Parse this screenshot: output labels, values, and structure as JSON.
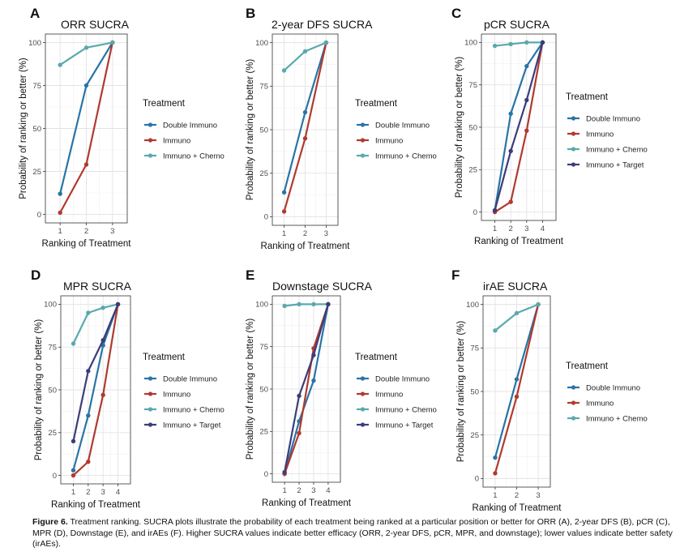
{
  "chart_data": [
    {
      "letter": "A",
      "type": "line",
      "title": "ORR SUCRA",
      "xlabel": "Ranking of Treatment",
      "ylabel": "Probability of ranking or better (%)",
      "categories": [
        "1",
        "2",
        "3"
      ],
      "ylim": [
        0,
        100
      ],
      "yticks": [
        "0",
        "25",
        "50",
        "75",
        "100"
      ],
      "legend_title": "Treatment",
      "legend_position": "right",
      "series": [
        {
          "name": "Double Immuno",
          "color": "#2874a6",
          "values": [
            12,
            75,
            100
          ]
        },
        {
          "name": "Immuno",
          "color": "#b03a2e",
          "values": [
            1,
            29,
            100
          ]
        },
        {
          "name": "Immuno + Chemo",
          "color": "#5aa9ac",
          "values": [
            87,
            97,
            100
          ]
        }
      ]
    },
    {
      "letter": "B",
      "type": "line",
      "title": "2-year DFS SUCRA",
      "xlabel": "Ranking of Treatment",
      "ylabel": "Probability of ranking or better (%)",
      "categories": [
        "1",
        "2",
        "3"
      ],
      "ylim": [
        0,
        100
      ],
      "yticks": [
        "0",
        "25",
        "50",
        "75",
        "100"
      ],
      "legend_title": "Treatment",
      "legend_position": "right",
      "series": [
        {
          "name": "Double Immuno",
          "color": "#2874a6",
          "values": [
            14,
            60,
            100
          ]
        },
        {
          "name": "Immuno",
          "color": "#b03a2e",
          "values": [
            3,
            45,
            100
          ]
        },
        {
          "name": "Immuno + Chemo",
          "color": "#5aa9ac",
          "values": [
            84,
            95,
            100
          ]
        }
      ]
    },
    {
      "letter": "C",
      "type": "line",
      "title": "pCR SUCRA",
      "xlabel": "Ranking of Treatment",
      "ylabel": "Probability of ranking or better (%)",
      "categories": [
        "1",
        "2",
        "3",
        "4"
      ],
      "ylim": [
        0,
        100
      ],
      "yticks": [
        "0",
        "25",
        "50",
        "75",
        "100"
      ],
      "legend_title": "Treatment",
      "legend_position": "right",
      "series": [
        {
          "name": "Double Immuno",
          "color": "#2874a6",
          "values": [
            1,
            58,
            86,
            100
          ]
        },
        {
          "name": "Immuno",
          "color": "#b03a2e",
          "values": [
            0,
            6,
            48,
            100
          ]
        },
        {
          "name": "Immuno + Chemo",
          "color": "#5aa9ac",
          "values": [
            98,
            99,
            100,
            100
          ]
        },
        {
          "name": "Immuno + Target",
          "color": "#3b3d7a",
          "values": [
            1,
            36,
            66,
            100
          ]
        }
      ]
    },
    {
      "letter": "D",
      "type": "line",
      "title": "MPR SUCRA",
      "xlabel": "Ranking of Treatment",
      "ylabel": "Probability of ranking or better (%)",
      "categories": [
        "1",
        "2",
        "3",
        "4"
      ],
      "ylim": [
        0,
        100
      ],
      "yticks": [
        "0",
        "25",
        "50",
        "75",
        "100"
      ],
      "legend_title": "Treatment",
      "legend_position": "right",
      "series": [
        {
          "name": "Double Immuno",
          "color": "#2874a6",
          "values": [
            3,
            35,
            76,
            100
          ]
        },
        {
          "name": "Immuno",
          "color": "#b03a2e",
          "values": [
            0,
            8,
            47,
            100
          ]
        },
        {
          "name": "Immuno + Chemo",
          "color": "#5aa9ac",
          "values": [
            77,
            95,
            98,
            100
          ]
        },
        {
          "name": "Immuno + Target",
          "color": "#3b3d7a",
          "values": [
            20,
            61,
            79,
            100
          ]
        }
      ]
    },
    {
      "letter": "E",
      "type": "line",
      "title": "Downstage SUCRA",
      "xlabel": "Ranking of Treatment",
      "ylabel": "Probability of ranking or better (%)",
      "categories": [
        "1",
        "2",
        "3",
        "4"
      ],
      "ylim": [
        0,
        100
      ],
      "yticks": [
        "0",
        "25",
        "50",
        "75",
        "100"
      ],
      "legend_title": "Treatment",
      "legend_position": "right",
      "series": [
        {
          "name": "Double Immuno",
          "color": "#2874a6",
          "values": [
            0,
            31,
            55,
            100
          ]
        },
        {
          "name": "Immuno",
          "color": "#b03a2e",
          "values": [
            0,
            24,
            74,
            100
          ]
        },
        {
          "name": "Immuno + Chemo",
          "color": "#5aa9ac",
          "values": [
            99,
            100,
            100,
            100
          ]
        },
        {
          "name": "Immuno + Target",
          "color": "#3b3d7a",
          "values": [
            1,
            46,
            70,
            100
          ]
        }
      ]
    },
    {
      "letter": "F",
      "type": "line",
      "title": "irAE SUCRA",
      "xlabel": "Ranking of Treatment",
      "ylabel": "Probability of ranking or better (%)",
      "categories": [
        "1",
        "2",
        "3"
      ],
      "ylim": [
        0,
        100
      ],
      "yticks": [
        "0",
        "25",
        "50",
        "75",
        "100"
      ],
      "legend_title": "Treatment",
      "legend_position": "right",
      "series": [
        {
          "name": "Double Immuno",
          "color": "#2874a6",
          "values": [
            12,
            57,
            100
          ]
        },
        {
          "name": "Immuno",
          "color": "#b03a2e",
          "values": [
            3,
            47,
            100
          ]
        },
        {
          "name": "Immuno + Chemo",
          "color": "#5aa9ac",
          "values": [
            85,
            95,
            100
          ]
        }
      ]
    }
  ],
  "caption": {
    "label": "Figure 6.",
    "text": " Treatment ranking. SUCRA plots illustrate the probability of each treatment being ranked at a particular position or better for ORR (A), 2-year DFS (B), pCR (C), MPR (D), Downstage (E), and irAEs (F). Higher SUCRA values indicate better efficacy (ORR, 2-year DFS, pCR, MPR, and downstage); lower values indicate better safety (irAEs)."
  }
}
